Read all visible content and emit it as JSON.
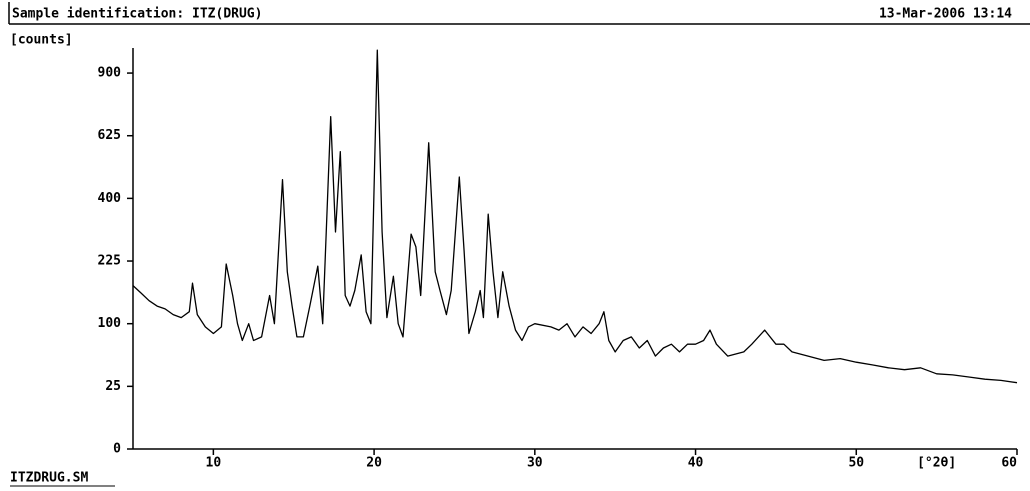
{
  "chart_data": {
    "type": "line",
    "title": "Sample identification: ITZ(DRUG)",
    "date": "13-Mar-2006 13:14",
    "ylabel": "[counts]",
    "xlabel": "[°2θ]",
    "footer": "ITZDRUG.SM",
    "yscale": "sqrt",
    "color": "#000000",
    "xlim": [
      5,
      60
    ],
    "ylim": [
      0,
      1024
    ],
    "xticks": [
      10,
      20,
      30,
      40,
      50,
      60
    ],
    "yticks": [
      0,
      25,
      100,
      225,
      400,
      625,
      900
    ],
    "x": [
      5,
      5.5,
      6,
      6.5,
      7,
      7.5,
      8,
      8.5,
      8.7,
      9,
      9.5,
      10,
      10.5,
      10.8,
      11.2,
      11.5,
      11.8,
      12.2,
      12.5,
      13,
      13.5,
      13.8,
      14.3,
      14.6,
      14.9,
      15.2,
      15.6,
      16,
      16.5,
      16.8,
      17.3,
      17.6,
      17.9,
      18.2,
      18.5,
      18.8,
      19.2,
      19.5,
      19.8,
      20.2,
      20.5,
      20.8,
      21.2,
      21.5,
      21.8,
      22.3,
      22.6,
      22.9,
      23.4,
      23.8,
      24.1,
      24.5,
      24.8,
      25.3,
      25.6,
      25.9,
      26.3,
      26.6,
      26.8,
      27.1,
      27.4,
      27.7,
      28,
      28.4,
      28.8,
      29.2,
      29.6,
      30,
      31,
      31.5,
      32,
      32.5,
      33,
      33.5,
      34,
      34.3,
      34.6,
      35,
      35.5,
      36,
      36.5,
      37,
      37.5,
      38,
      38.5,
      39,
      39.5,
      40,
      40.5,
      40.9,
      41.3,
      42,
      43,
      43.5,
      44.3,
      45,
      45.5,
      46,
      47,
      48,
      49,
      50,
      51,
      52,
      53,
      54,
      55,
      56,
      57,
      58,
      59,
      60
    ],
    "values": [
      170,
      155,
      140,
      130,
      125,
      115,
      110,
      120,
      175,
      115,
      95,
      85,
      95,
      218,
      150,
      100,
      75,
      100,
      75,
      80,
      150,
      100,
      462,
      200,
      130,
      80,
      80,
      130,
      213,
      100,
      703,
      300,
      563,
      150,
      130,
      160,
      240,
      120,
      100,
      1013,
      300,
      110,
      190,
      100,
      80,
      294,
      260,
      150,
      597,
      200,
      160,
      115,
      160,
      471,
      250,
      85,
      120,
      160,
      110,
      351,
      200,
      110,
      200,
      130,
      90,
      75,
      95,
      100,
      95,
      90,
      100,
      80,
      95,
      85,
      100,
      120,
      75,
      60,
      75,
      80,
      65,
      75,
      55,
      65,
      70,
      60,
      70,
      70,
      75,
      90,
      70,
      55,
      60,
      70,
      90,
      70,
      70,
      60,
      55,
      50,
      52,
      48,
      45,
      42,
      40,
      42,
      36,
      35,
      33,
      31,
      30,
      28
    ]
  }
}
